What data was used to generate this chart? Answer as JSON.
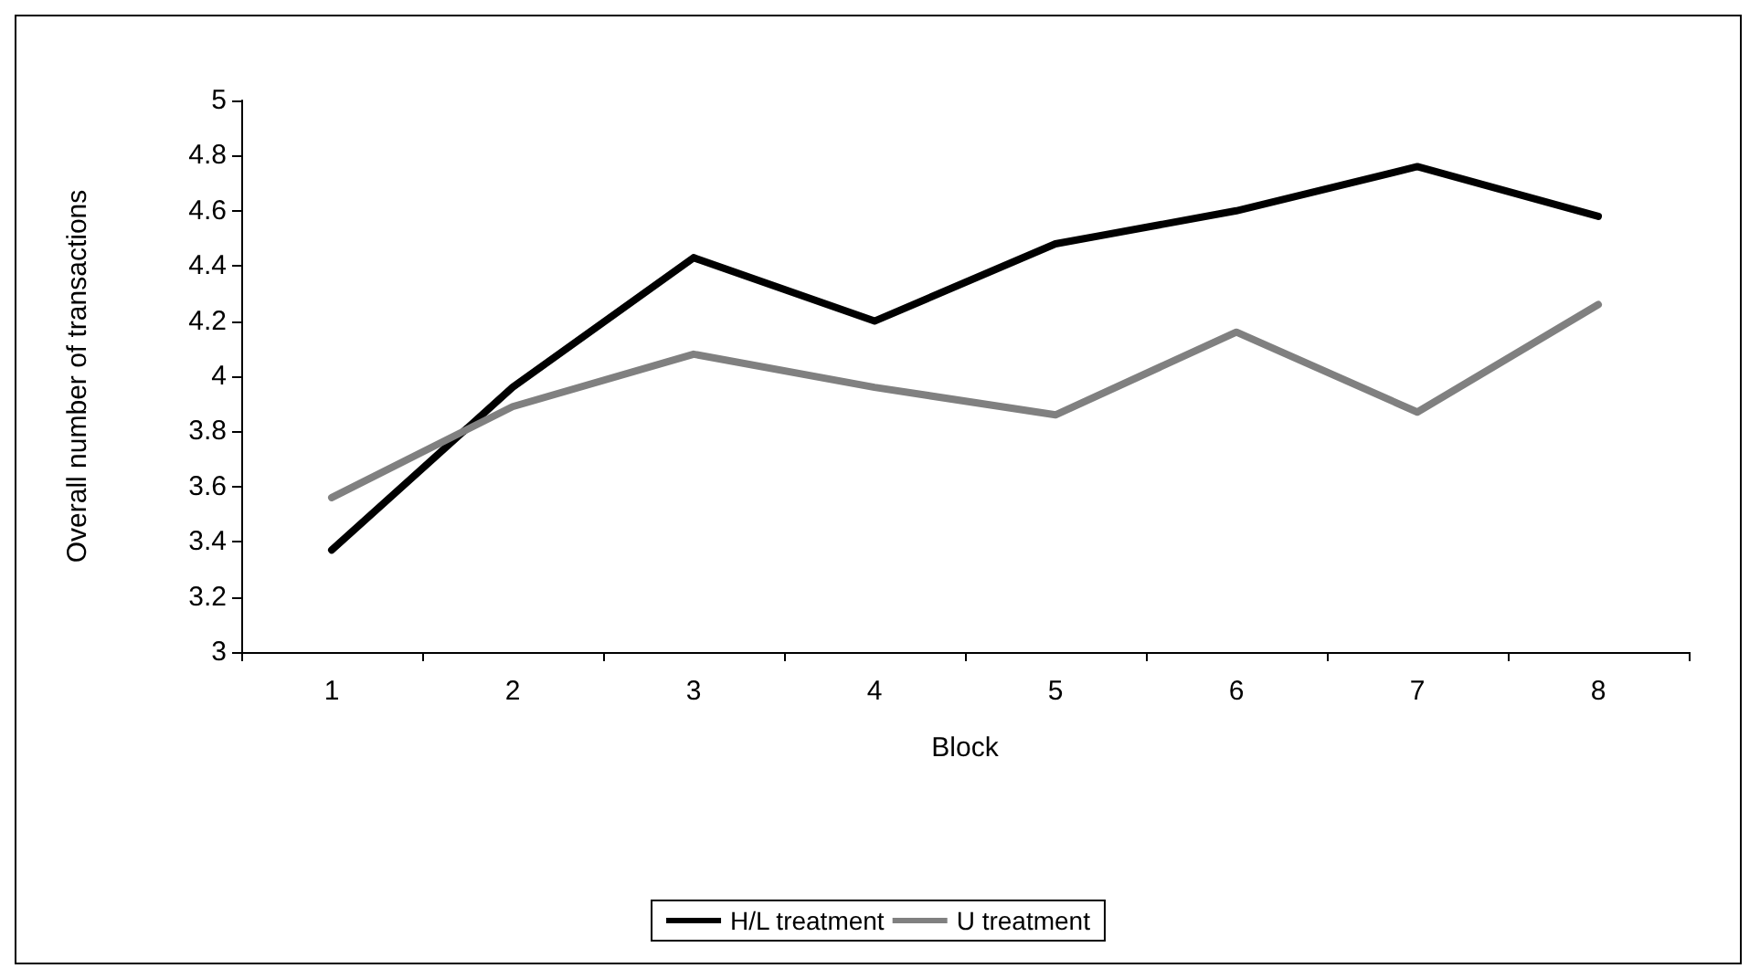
{
  "chart_data": {
    "type": "line",
    "xlabel": "Block",
    "ylabel": "Overall number of transactions",
    "categories": [
      "1",
      "2",
      "3",
      "4",
      "5",
      "6",
      "7",
      "8"
    ],
    "series": [
      {
        "name": "H/L treatment",
        "color": "#000000",
        "values": [
          3.37,
          3.96,
          4.43,
          4.2,
          4.48,
          4.6,
          4.76,
          4.58
        ]
      },
      {
        "name": "U treatment",
        "color": "#808080",
        "values": [
          3.56,
          3.89,
          4.08,
          3.96,
          3.86,
          4.16,
          3.87,
          4.26
        ]
      }
    ],
    "ylim": [
      3,
      5
    ],
    "yticks": [
      3,
      3.2,
      3.4,
      3.6,
      3.8,
      4,
      4.2,
      4.4,
      4.6,
      4.8,
      5
    ],
    "grid": false,
    "legend": "bottom",
    "marker": "none",
    "line_style": "solid"
  }
}
